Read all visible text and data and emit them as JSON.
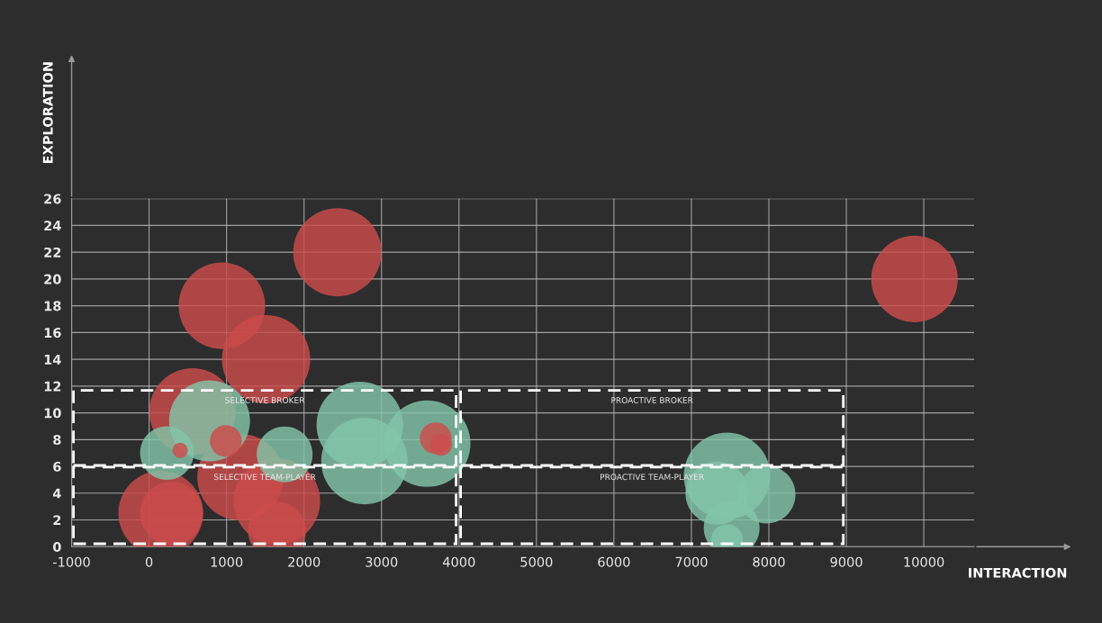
{
  "chart_data": {
    "type": "bubble",
    "xlabel": "INTERACTION",
    "ylabel": "EXPLORATION",
    "xlim": [
      -1000,
      10650
    ],
    "xticks": [
      -1000,
      0,
      1000,
      2000,
      3000,
      4000,
      5000,
      6000,
      7000,
      8000,
      9000,
      10000
    ],
    "ylim": [
      0,
      26
    ],
    "yticks": [
      0,
      2,
      4,
      6,
      8,
      10,
      12,
      14,
      16,
      18,
      20,
      22,
      24,
      26
    ],
    "grid": true,
    "series": [
      {
        "color": "#cc4c4c",
        "x": [
          2430,
          9880,
          940,
          1510,
          560,
          1180,
          990,
          400,
          1650,
          1650,
          150,
          290,
          3700,
          3770
        ],
        "values": [
          22.0,
          20.0,
          18.0,
          14.0,
          10.1,
          5.2,
          7.9,
          7.2,
          3.4,
          1.2,
          2.5,
          2.5,
          8.1,
          7.6
        ],
        "sizes": [
          1,
          0.96,
          0.96,
          1,
          0.96,
          0.96,
          0.13,
          0.03,
          0.96,
          0.43,
          0.92,
          0.51,
          0.13,
          0.06
        ]
      },
      {
        "color": "#82c4a8",
        "x": [
          780,
          230,
          1750,
          2720,
          2780,
          3590,
          7460,
          7330,
          7970,
          7520,
          7460
        ],
        "values": [
          9.4,
          7.0,
          6.9,
          9.1,
          6.4,
          7.7,
          5.3,
          4.0,
          3.9,
          1.4,
          0.5
        ],
        "sizes": [
          0.84,
          0.37,
          0.4,
          0.96,
          0.96,
          0.96,
          0.96,
          0.51,
          0.43,
          0.4,
          0.13
        ]
      }
    ],
    "annotations": [
      "SELECTIVE BROKER",
      "PROACTIVE BROKER",
      "SELECTIVE TEAM-PLAYER",
      "PROACTIVE TEAM-PLAYER"
    ]
  }
}
